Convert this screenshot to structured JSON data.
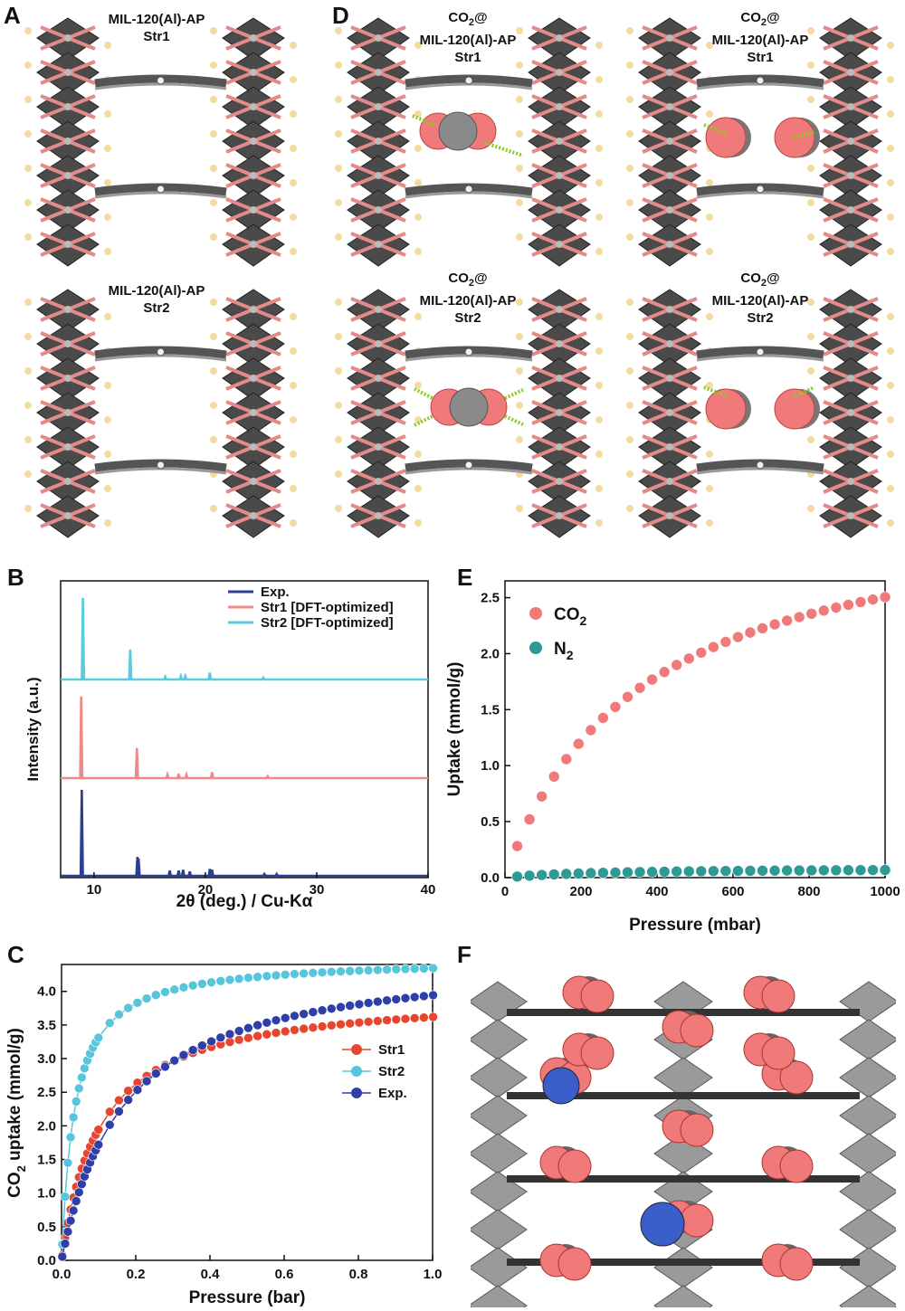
{
  "panels": {
    "A": "A",
    "B": "B",
    "C": "C",
    "D": "D",
    "E": "E",
    "F": "F"
  },
  "structures": {
    "a_top": [
      "MIL-120(Al)-AP",
      "Str1"
    ],
    "a_bottom": [
      "MIL-120(Al)-AP",
      "Str2"
    ],
    "d_top_left": [
      "CO",
      "2",
      "@",
      "MIL-120(Al)-AP",
      "Str1"
    ],
    "d_top_right": [
      "CO",
      "2",
      "@",
      "MIL-120(Al)-AP",
      "Str1"
    ],
    "d_bottom_left": [
      "CO",
      "2",
      "@",
      "MIL-120(Al)-AP",
      "Str2"
    ],
    "d_bottom_right": [
      "CO",
      "2",
      "@",
      "MIL-120(Al)-AP",
      "Str2"
    ]
  },
  "colors": {
    "exp": "#2c3e8f",
    "str1_pxrd": "#f08a8a",
    "str2_pxrd": "#5ccbe0",
    "str1_iso": "#e8452e",
    "str2_iso": "#57c5dc",
    "exp_iso": "#2f3fa8",
    "co2": "#f07a7a",
    "n2": "#2e9a96",
    "framework_dark": "#4a4a4a",
    "framework_pink": "#e38a8a",
    "hydrogen": "#f4dca0"
  },
  "chart_data": [
    {
      "panel": "B",
      "type": "line",
      "xlabel": "2θ (deg.) / Cu-Kα",
      "ylabel": "Intensity (a.u.)",
      "xlim": [
        7,
        40
      ],
      "xticks": [
        10,
        20,
        30,
        40
      ],
      "series": [
        {
          "name": "Exp.",
          "offset": 0,
          "peaks": [
            [
              8.9,
              1.0
            ],
            [
              13.9,
              0.22
            ],
            [
              14.0,
              0.2
            ],
            [
              16.8,
              0.06
            ],
            [
              17.6,
              0.06
            ],
            [
              18.0,
              0.07
            ],
            [
              18.6,
              0.05
            ],
            [
              20.4,
              0.08
            ],
            [
              20.6,
              0.07
            ],
            [
              25.3,
              0.02
            ],
            [
              26.4,
              0.02
            ]
          ]
        },
        {
          "name": "Str1 [DFT-optimized]",
          "offset": 1,
          "peaks": [
            [
              8.85,
              0.95
            ],
            [
              13.85,
              0.35
            ],
            [
              16.6,
              0.04
            ],
            [
              17.6,
              0.05
            ],
            [
              18.3,
              0.04
            ],
            [
              20.6,
              0.07
            ],
            [
              25.6,
              0.02
            ]
          ]
        },
        {
          "name": "Str2 [DFT-optimized]",
          "offset": 2,
          "peaks": [
            [
              9.0,
              0.95
            ],
            [
              13.25,
              0.35
            ],
            [
              16.4,
              0.03
            ],
            [
              17.8,
              0.04
            ],
            [
              18.2,
              0.04
            ],
            [
              20.4,
              0.08
            ],
            [
              25.2,
              0.02
            ]
          ]
        }
      ]
    },
    {
      "panel": "C",
      "type": "line",
      "xlabel": "Pressure (bar)",
      "ylabel_main": "CO",
      "ylabel_sub": "2",
      "ylabel_rest": " uptake (mmol/g)",
      "xlim": [
        0,
        1.0
      ],
      "ylim": [
        0,
        4.4
      ],
      "xticks": [
        0.0,
        0.2,
        0.4,
        0.6,
        0.8,
        1.0
      ],
      "yticks": [
        0.0,
        0.5,
        1.0,
        1.5,
        2.0,
        2.5,
        3.0,
        3.5,
        4.0
      ],
      "series": [
        {
          "name": "Str1",
          "model": {
            "qmax": 4.0,
            "b": 9.5
          }
        },
        {
          "name": "Str2",
          "model": {
            "qmax": 4.5,
            "b": 28
          }
        },
        {
          "name": "Exp.",
          "model": {
            "qmax": 4.6,
            "b": 6.0
          }
        }
      ]
    },
    {
      "panel": "E",
      "type": "scatter",
      "xlabel": "Pressure (mbar)",
      "ylabel": "Uptake (mmol/g)",
      "xlim": [
        0,
        1000
      ],
      "ylim": [
        0,
        2.65
      ],
      "xticks": [
        0,
        200,
        400,
        600,
        800,
        1000
      ],
      "yticks": [
        0.0,
        0.5,
        1.0,
        1.5,
        2.0,
        2.5
      ],
      "series": [
        {
          "name": "CO",
          "sub": "2",
          "model": {
            "qmax": 3.4,
            "b": 0.0028
          }
        },
        {
          "name": "N",
          "sub": "2",
          "model": {
            "qmax": 0.085,
            "b": 0.004
          }
        }
      ]
    }
  ]
}
